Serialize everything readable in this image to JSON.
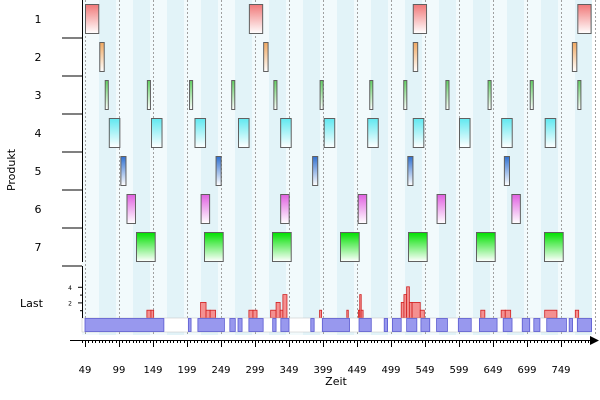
{
  "chart_data": {
    "type": "gantt",
    "xlabel": "Zeit",
    "ylabel": "Produkt",
    "load_label": "Last",
    "xlim": [
      49,
      790
    ],
    "x_ticks": [
      49,
      99,
      149,
      199,
      249,
      299,
      349,
      399,
      449,
      499,
      549,
      599,
      649,
      699,
      749
    ],
    "load_ticks": [
      2,
      4
    ],
    "rows": [
      {
        "label": "1",
        "color_top": "#f07878",
        "color_bottom": "#ffffff",
        "tasks": [
          [
            49,
            70
          ],
          [
            290,
            311
          ],
          [
            531,
            552
          ],
          [
            773,
            794
          ]
        ]
      },
      {
        "label": "2",
        "color_top": "#f0a860",
        "color_bottom": "#ffffff",
        "tasks": [
          [
            70,
            78
          ],
          [
            311,
            319
          ],
          [
            531,
            539
          ],
          [
            765,
            773
          ]
        ]
      },
      {
        "label": "3",
        "color_top": "#60d060",
        "color_bottom": "#ffffff",
        "tasks": [
          [
            78,
            84
          ],
          [
            140,
            146
          ],
          [
            202,
            208
          ],
          [
            264,
            270
          ],
          [
            326,
            332
          ],
          [
            394,
            400
          ],
          [
            467,
            473
          ],
          [
            517,
            523
          ],
          [
            579,
            585
          ],
          [
            641,
            647
          ],
          [
            703,
            709
          ],
          [
            773,
            779
          ]
        ]
      },
      {
        "label": "4",
        "color_top": "#60e8f0",
        "color_bottom": "#ffffff",
        "tasks": [
          [
            84,
            101
          ],
          [
            146,
            163
          ],
          [
            210,
            227
          ],
          [
            274,
            291
          ],
          [
            336,
            353
          ],
          [
            400,
            417
          ],
          [
            464,
            481
          ],
          [
            531,
            548
          ],
          [
            599,
            616
          ],
          [
            661,
            678
          ],
          [
            725,
            742
          ]
        ]
      },
      {
        "label": "5",
        "color_top": "#3070d0",
        "color_bottom": "#ffffff",
        "tasks": [
          [
            101,
            110
          ],
          [
            241,
            250
          ],
          [
            383,
            392
          ],
          [
            523,
            532
          ],
          [
            665,
            674
          ]
        ]
      },
      {
        "label": "6",
        "color_top": "#e060e0",
        "color_bottom": "#ffffff",
        "tasks": [
          [
            110,
            124
          ],
          [
            219,
            233
          ],
          [
            336,
            350
          ],
          [
            450,
            464
          ],
          [
            566,
            580
          ],
          [
            676,
            690
          ]
        ]
      },
      {
        "label": "7",
        "color_top": "#00e000",
        "color_bottom": "#ffffff",
        "tasks": [
          [
            124,
            153
          ],
          [
            224,
            253
          ],
          [
            324,
            353
          ],
          [
            424,
            453
          ],
          [
            524,
            553
          ],
          [
            624,
            653
          ],
          [
            724,
            753
          ]
        ]
      }
    ],
    "load_bars": [
      [
        140,
        146,
        1
      ],
      [
        146,
        150,
        1
      ],
      [
        219,
        227,
        2
      ],
      [
        227,
        233,
        1
      ],
      [
        233,
        241,
        1
      ],
      [
        290,
        296,
        1
      ],
      [
        296,
        302,
        1
      ],
      [
        322,
        330,
        1
      ],
      [
        330,
        336,
        2
      ],
      [
        336,
        340,
        1
      ],
      [
        340,
        346,
        3
      ],
      [
        394,
        397,
        1
      ],
      [
        434,
        436,
        1
      ],
      [
        451,
        455,
        1
      ],
      [
        453,
        455,
        3
      ],
      [
        455,
        458,
        1
      ],
      [
        514,
        518,
        2
      ],
      [
        518,
        522,
        3
      ],
      [
        522,
        526,
        4
      ],
      [
        526,
        530,
        2
      ],
      [
        530,
        542,
        2
      ],
      [
        542,
        548,
        1
      ],
      [
        631,
        637,
        1
      ],
      [
        661,
        667,
        1
      ],
      [
        667,
        675,
        1
      ],
      [
        725,
        743,
        1
      ],
      [
        770,
        775,
        1
      ]
    ],
    "setup_bars": [
      [
        49,
        165
      ],
      [
        201,
        205
      ],
      [
        215,
        254
      ],
      [
        262,
        270
      ],
      [
        274,
        280
      ],
      [
        290,
        311
      ],
      [
        325,
        330
      ],
      [
        337,
        349
      ],
      [
        381,
        386
      ],
      [
        398,
        438
      ],
      [
        452,
        470
      ],
      [
        489,
        494
      ],
      [
        501,
        514
      ],
      [
        522,
        537
      ],
      [
        543,
        556
      ],
      [
        566,
        582
      ],
      [
        598,
        617
      ],
      [
        629,
        655
      ],
      [
        664,
        677
      ],
      [
        692,
        703
      ],
      [
        709,
        718
      ],
      [
        728,
        757
      ],
      [
        761,
        766
      ],
      [
        773,
        794
      ]
    ],
    "colors": {
      "grid": "#a0a0a0",
      "stripe_a": "#f2fafc",
      "stripe_b": "#e2f3f8",
      "load_fill": "#f49090",
      "load_stroke": "#d02020",
      "setup_fill": "#9898ee",
      "setup_stroke": "#5a5ad0",
      "axis": "#000000"
    }
  }
}
